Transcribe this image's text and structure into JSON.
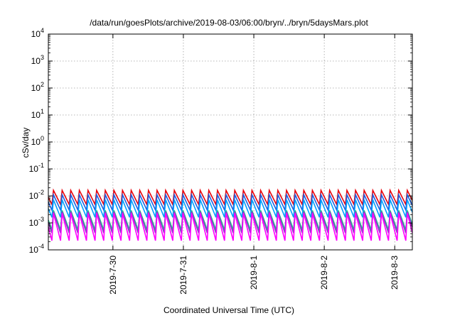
{
  "chart_data": {
    "type": "line",
    "title": "/data/run/goesPlots/archive/2019-08-03/06:00/bryn/../bryn/5daysMars.plot",
    "xlabel": "Coordinated Universal Time (UTC)",
    "ylabel": "cSv/day",
    "yscale": "log",
    "ylim": [
      0.0001,
      10000
    ],
    "y_ticks": [
      {
        "value": 0.0001,
        "base": "10",
        "exp": "-4"
      },
      {
        "value": 0.001,
        "base": "10",
        "exp": "-3"
      },
      {
        "value": 0.01,
        "base": "10",
        "exp": "-2"
      },
      {
        "value": 0.1,
        "base": "10",
        "exp": "-1"
      },
      {
        "value": 1,
        "base": "10",
        "exp": "0"
      },
      {
        "value": 10,
        "base": "10",
        "exp": "1"
      },
      {
        "value": 100,
        "base": "10",
        "exp": "2"
      },
      {
        "value": 1000,
        "base": "10",
        "exp": "3"
      },
      {
        "value": 10000,
        "base": "10",
        "exp": "4"
      }
    ],
    "xlim": [
      "2019-07-29 02:00",
      "2019-08-03 06:00"
    ],
    "x_ticks": [
      "2019-7-30",
      "2019-7-31",
      "2019-8-1",
      "2019-8-2",
      "2019-8-3"
    ],
    "grid": true,
    "sawtooth": {
      "period_hours": 2.94,
      "first_peak_hours_after_start": 1.75,
      "fall_fraction": 0.82
    },
    "series": [
      {
        "color": "#e8000b",
        "peak": 0.016,
        "trough": 0.0048
      },
      {
        "color": "#1f5fe0",
        "peak": 0.011,
        "trough": 0.003
      },
      {
        "color": "#00a0ff",
        "peak": 0.0072,
        "trough": 0.0016
      },
      {
        "color": "#1fbe8c",
        "peak": 0.0029,
        "trough": 0.00055
      },
      {
        "color": "#8a3cc8",
        "peak": 0.0026,
        "trough": 0.00042
      },
      {
        "color": "#ff00ff",
        "peak": 0.0023,
        "trough": 0.00022
      }
    ]
  }
}
